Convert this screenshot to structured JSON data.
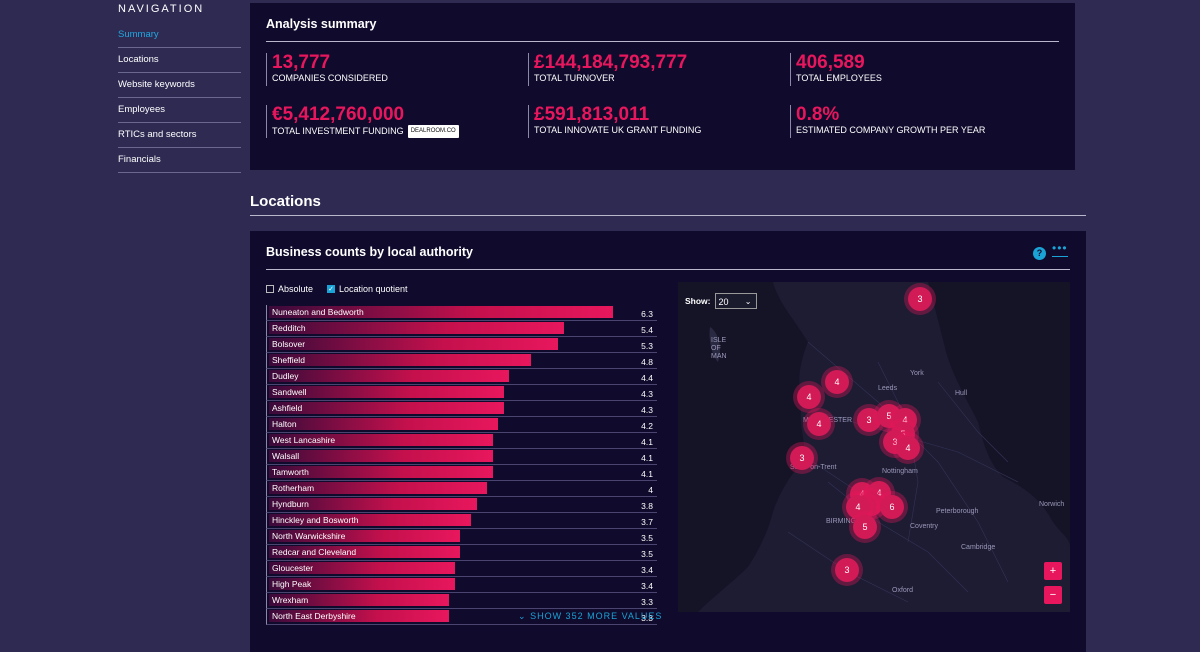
{
  "nav": {
    "title": "NAVIGATION",
    "items": [
      "Summary",
      "Locations",
      "Website keywords",
      "Employees",
      "RTICs and sectors",
      "Financials"
    ]
  },
  "summary": {
    "title": "Analysis summary",
    "stats": [
      {
        "value": "13,777",
        "label": "COMPANIES CONSIDERED"
      },
      {
        "value": "£144,184,793,777",
        "label": "TOTAL TURNOVER"
      },
      {
        "value": "406,589",
        "label": "TOTAL EMPLOYEES"
      },
      {
        "value": "€5,412,760,000",
        "label": "TOTAL INVESTMENT FUNDING"
      },
      {
        "value": "£591,813,011",
        "label": "TOTAL INNOVATE UK GRANT FUNDING"
      },
      {
        "value": "0.8%",
        "label": "ESTIMATED COMPANY GROWTH PER YEAR"
      }
    ],
    "dealroom_badge": "dealroom.co"
  },
  "locations": {
    "title": "Locations",
    "card_title": "Business counts by local authority",
    "help_label": "?",
    "more_label": "•••",
    "absolute_label": "Absolute",
    "lq_label": "Location quotient",
    "max_value": 6.5,
    "rows": [
      {
        "name": "Nuneaton and Bedworth",
        "value": "6.3",
        "v": 6.3
      },
      {
        "name": "Redditch",
        "value": "5.4",
        "v": 5.4
      },
      {
        "name": "Bolsover",
        "value": "5.3",
        "v": 5.3
      },
      {
        "name": "Sheffield",
        "value": "4.8",
        "v": 4.8
      },
      {
        "name": "Dudley",
        "value": "4.4",
        "v": 4.4
      },
      {
        "name": "Sandwell",
        "value": "4.3",
        "v": 4.3
      },
      {
        "name": "Ashfield",
        "value": "4.3",
        "v": 4.3
      },
      {
        "name": "Halton",
        "value": "4.2",
        "v": 4.2
      },
      {
        "name": "West Lancashire",
        "value": "4.1",
        "v": 4.1
      },
      {
        "name": "Walsall",
        "value": "4.1",
        "v": 4.1
      },
      {
        "name": "Tamworth",
        "value": "4.1",
        "v": 4.1
      },
      {
        "name": "Rotherham",
        "value": "4",
        "v": 4.0
      },
      {
        "name": "Hyndburn",
        "value": "3.8",
        "v": 3.8
      },
      {
        "name": "Hinckley and Bosworth",
        "value": "3.7",
        "v": 3.7
      },
      {
        "name": "North Warwickshire",
        "value": "3.5",
        "v": 3.5
      },
      {
        "name": "Redcar and Cleveland",
        "value": "3.5",
        "v": 3.5
      },
      {
        "name": "Gloucester",
        "value": "3.4",
        "v": 3.4
      },
      {
        "name": "High Peak",
        "value": "3.4",
        "v": 3.4
      },
      {
        "name": "Wrexham",
        "value": "3.3",
        "v": 3.3
      },
      {
        "name": "North East Derbyshire",
        "value": "3.3",
        "v": 3.3
      }
    ],
    "show_more": "SHOW 352 MORE VALUES",
    "map": {
      "show_label": "Show:",
      "show_value": "20",
      "zoom_in": "+",
      "zoom_out": "−",
      "place_labels": [
        "ISLE OF MAN",
        "Leeds",
        "York",
        "Hull",
        "MANCHESTER",
        "Stoke-on-Trent",
        "Nottingham",
        "BIRMINGHAM",
        "Peterborough",
        "Norwich",
        "Coventry",
        "Cambridge",
        "Oxford"
      ],
      "clusters": [
        "3",
        "4",
        "4",
        "4",
        "3",
        "5",
        "4",
        "5",
        "3",
        "4",
        "3",
        "4",
        "4",
        "4",
        "6",
        "4",
        "4",
        "5",
        "3"
      ]
    }
  }
}
